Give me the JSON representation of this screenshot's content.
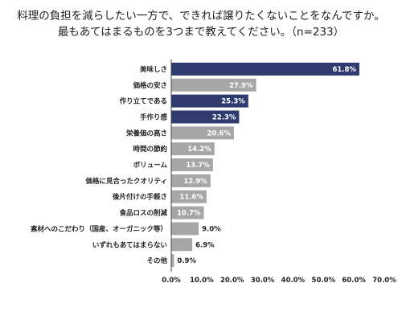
{
  "title": {
    "line1": "料理の負担を減らしたい一方で、できれば譲りたくないことをなんですか。",
    "line2": "最もあてはまるものを3つまで教えてください。（n=233）"
  },
  "colors": {
    "highlight": "#2f3b6e",
    "default": "#a6a6a6",
    "axis": "#444444"
  },
  "chart_data": {
    "type": "bar",
    "orientation": "horizontal",
    "categories": [
      "美味しさ",
      "価格の安さ",
      "作り立てである",
      "手作り感",
      "栄養価の高さ",
      "時間の節約",
      "ボリューム",
      "価格に見合ったクオリティ",
      "後片付けの手軽さ",
      "食品ロスの削減",
      "素材へのこだわり（国産、オーガニック等）",
      "いずれもあてはまらない",
      "その他"
    ],
    "values": [
      61.8,
      27.9,
      25.3,
      22.3,
      20.6,
      14.2,
      13.7,
      12.9,
      11.6,
      10.7,
      9.0,
      6.9,
      0.9
    ],
    "value_labels": [
      "61.8%",
      "27.9%",
      "25.3%",
      "22.3%",
      "20.6%",
      "14.2%",
      "13.7%",
      "12.9%",
      "11.6%",
      "10.7%",
      "9.0%",
      "6.9%",
      "0.9%"
    ],
    "highlighted": [
      true,
      false,
      true,
      true,
      false,
      false,
      false,
      false,
      false,
      false,
      false,
      false,
      false
    ],
    "xlim": [
      0,
      70
    ],
    "xticks": [
      "0.0%",
      "10.0%",
      "20.0%",
      "30.0%",
      "40.0%",
      "50.0%",
      "60.0%",
      "70.0%"
    ],
    "grid": false,
    "legend": false
  }
}
